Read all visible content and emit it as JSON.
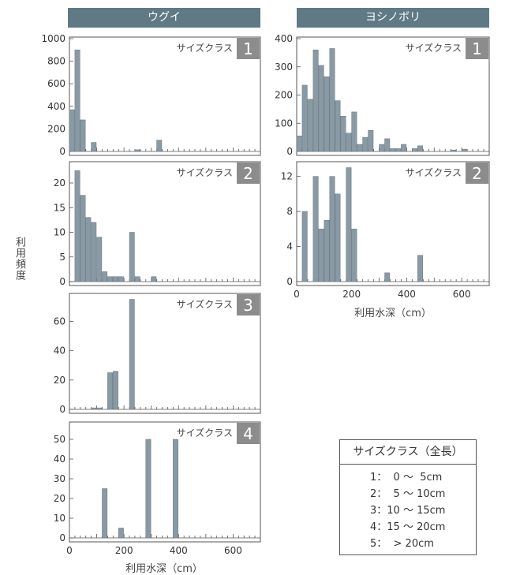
{
  "headers": {
    "left": "ウグイ",
    "right": "ヨシノボリ"
  },
  "y_label": "利用頻度",
  "x_label_left": "利用水深（cm）",
  "x_label_right": "利用水深（cm）",
  "legend": {
    "title": "サイズクラス（全長）",
    "items": [
      "1：  0 ～  5cm",
      "2：  5 ～ 10cm",
      "3：10 ～ 15cm",
      "4：15 ～ 20cm",
      "5：  > 20cm"
    ]
  },
  "chart_data": [
    {
      "id": "ugui-1",
      "type": "bar",
      "species": "ウグイ",
      "size_class_label": "サイズクラス",
      "size_class": "1",
      "bin_width": 20,
      "xlim": [
        0,
        700
      ],
      "ylim": [
        0,
        1000
      ],
      "yticks": [
        0,
        200,
        400,
        600,
        800,
        1000
      ],
      "xticks": [],
      "bars": [
        {
          "x": 0,
          "y": 370
        },
        {
          "x": 20,
          "y": 900
        },
        {
          "x": 40,
          "y": 280
        },
        {
          "x": 80,
          "y": 80
        },
        {
          "x": 240,
          "y": 15
        },
        {
          "x": 320,
          "y": 100
        }
      ]
    },
    {
      "id": "ugui-2",
      "type": "bar",
      "species": "ウグイ",
      "size_class_label": "サイズクラス",
      "size_class": "2",
      "bin_width": 20,
      "xlim": [
        0,
        700
      ],
      "ylim": [
        0,
        24
      ],
      "yticks": [
        0,
        5,
        10,
        15,
        20
      ],
      "xticks": [],
      "bars": [
        {
          "x": 20,
          "y": 22.5
        },
        {
          "x": 40,
          "y": 17.5
        },
        {
          "x": 60,
          "y": 13
        },
        {
          "x": 80,
          "y": 12
        },
        {
          "x": 100,
          "y": 9
        },
        {
          "x": 120,
          "y": 2
        },
        {
          "x": 140,
          "y": 1
        },
        {
          "x": 160,
          "y": 1
        },
        {
          "x": 180,
          "y": 1
        },
        {
          "x": 220,
          "y": 10
        },
        {
          "x": 240,
          "y": 1
        },
        {
          "x": 300,
          "y": 1
        }
      ]
    },
    {
      "id": "ugui-3",
      "type": "bar",
      "species": "ウグイ",
      "size_class_label": "サイズクラス",
      "size_class": "3",
      "bin_width": 20,
      "xlim": [
        0,
        700
      ],
      "ylim": [
        0,
        78
      ],
      "yticks": [
        0,
        20,
        40,
        60
      ],
      "xticks": [],
      "bars": [
        {
          "x": 80,
          "y": 1
        },
        {
          "x": 100,
          "y": 1
        },
        {
          "x": 140,
          "y": 25
        },
        {
          "x": 160,
          "y": 26
        },
        {
          "x": 220,
          "y": 75
        }
      ]
    },
    {
      "id": "ugui-4",
      "type": "bar",
      "species": "ウグイ",
      "size_class_label": "サイズクラス",
      "size_class": "4",
      "bin_width": 20,
      "xlim": [
        0,
        700
      ],
      "ylim": [
        0,
        58
      ],
      "yticks": [
        0,
        10,
        20,
        30,
        40,
        50
      ],
      "xticks": [
        0,
        200,
        400,
        600
      ],
      "bars": [
        {
          "x": 120,
          "y": 25
        },
        {
          "x": 180,
          "y": 5
        },
        {
          "x": 280,
          "y": 50
        },
        {
          "x": 380,
          "y": 50
        }
      ]
    },
    {
      "id": "yoshinobori-1",
      "type": "bar",
      "species": "ヨシノボリ",
      "size_class_label": "サイズクラス",
      "size_class": "1",
      "bin_width": 20,
      "xlim": [
        0,
        700
      ],
      "ylim": [
        0,
        400
      ],
      "yticks": [
        0,
        100,
        200,
        300,
        400
      ],
      "xticks": [],
      "bars": [
        {
          "x": 0,
          "y": 55
        },
        {
          "x": 20,
          "y": 235
        },
        {
          "x": 40,
          "y": 185
        },
        {
          "x": 60,
          "y": 360
        },
        {
          "x": 80,
          "y": 305
        },
        {
          "x": 100,
          "y": 265
        },
        {
          "x": 120,
          "y": 365
        },
        {
          "x": 140,
          "y": 180
        },
        {
          "x": 160,
          "y": 125
        },
        {
          "x": 180,
          "y": 65
        },
        {
          "x": 200,
          "y": 140
        },
        {
          "x": 220,
          "y": 25
        },
        {
          "x": 240,
          "y": 50
        },
        {
          "x": 260,
          "y": 75
        },
        {
          "x": 300,
          "y": 25
        },
        {
          "x": 320,
          "y": 45
        },
        {
          "x": 340,
          "y": 10
        },
        {
          "x": 360,
          "y": 10
        },
        {
          "x": 380,
          "y": 25
        },
        {
          "x": 420,
          "y": 10
        },
        {
          "x": 440,
          "y": 20
        },
        {
          "x": 560,
          "y": 5
        },
        {
          "x": 600,
          "y": 8
        }
      ]
    },
    {
      "id": "yoshinobori-2",
      "type": "bar",
      "species": "ヨシノボリ",
      "size_class_label": "サイズクラス",
      "size_class": "2",
      "bin_width": 20,
      "xlim": [
        0,
        700
      ],
      "ylim": [
        0,
        13.5
      ],
      "yticks": [
        0,
        4,
        8,
        12
      ],
      "xticks": [
        0,
        200,
        400,
        600
      ],
      "bars": [
        {
          "x": 20,
          "y": 8
        },
        {
          "x": 60,
          "y": 12
        },
        {
          "x": 80,
          "y": 6
        },
        {
          "x": 100,
          "y": 7
        },
        {
          "x": 120,
          "y": 12
        },
        {
          "x": 140,
          "y": 10
        },
        {
          "x": 180,
          "y": 13
        },
        {
          "x": 200,
          "y": 6
        },
        {
          "x": 320,
          "y": 1
        },
        {
          "x": 440,
          "y": 3
        }
      ]
    }
  ]
}
